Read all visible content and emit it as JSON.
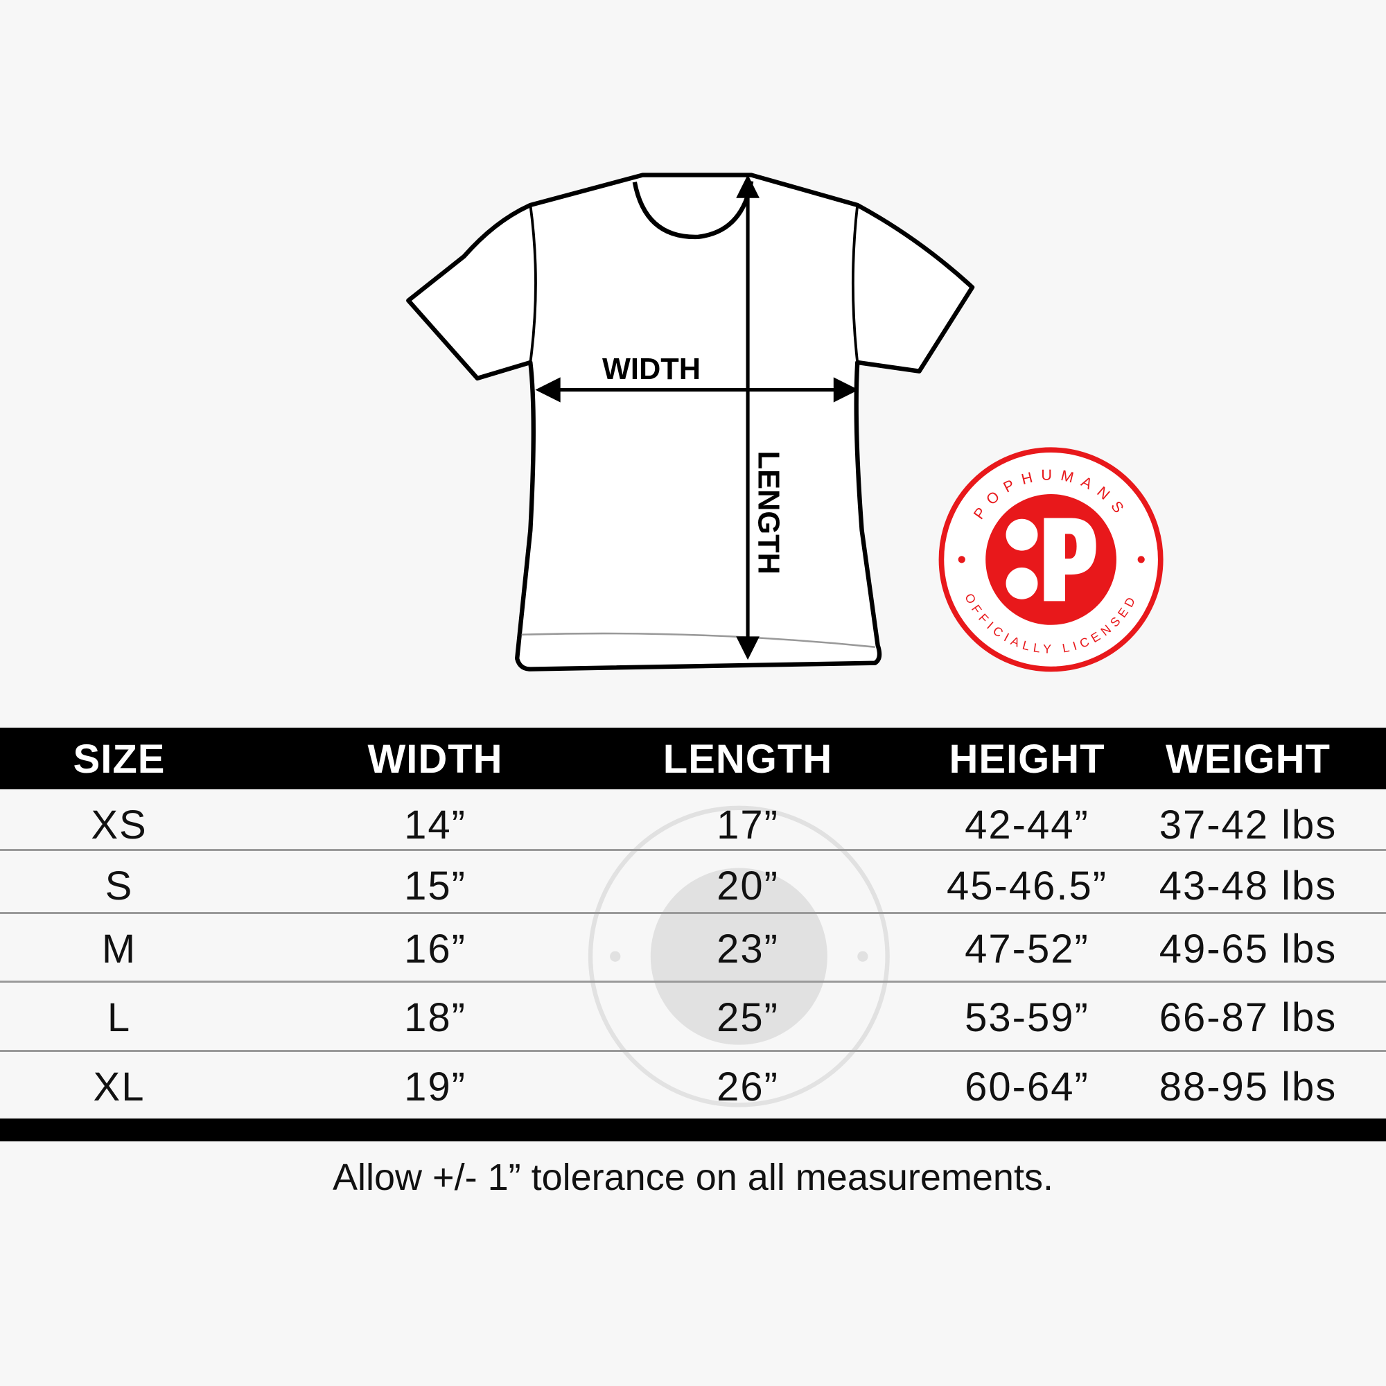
{
  "diagram": {
    "width_label": "WIDTH",
    "length_label": "LENGTH"
  },
  "badge": {
    "brand": "POPHUMANS",
    "tagline": "OFFICIALLY LICENSED",
    "monogram": "P",
    "color": "#e8181b"
  },
  "table": {
    "headers": [
      "SIZE",
      "WIDTH",
      "LENGTH",
      "HEIGHT",
      "WEIGHT"
    ],
    "rows": [
      [
        "XS",
        "14”",
        "17”",
        "42-44”",
        "37-42 lbs"
      ],
      [
        "S",
        "15”",
        "20”",
        "45-46.5”",
        "43-48 lbs"
      ],
      [
        "M",
        "16”",
        "23”",
        "47-52”",
        "49-65 lbs"
      ],
      [
        "L",
        "18”",
        "25”",
        "53-59”",
        "66-87 lbs"
      ],
      [
        "XL",
        "19”",
        "26”",
        "60-64”",
        "88-95 lbs"
      ]
    ]
  },
  "footer": {
    "note": "Allow +/- 1” tolerance on all measurements."
  }
}
